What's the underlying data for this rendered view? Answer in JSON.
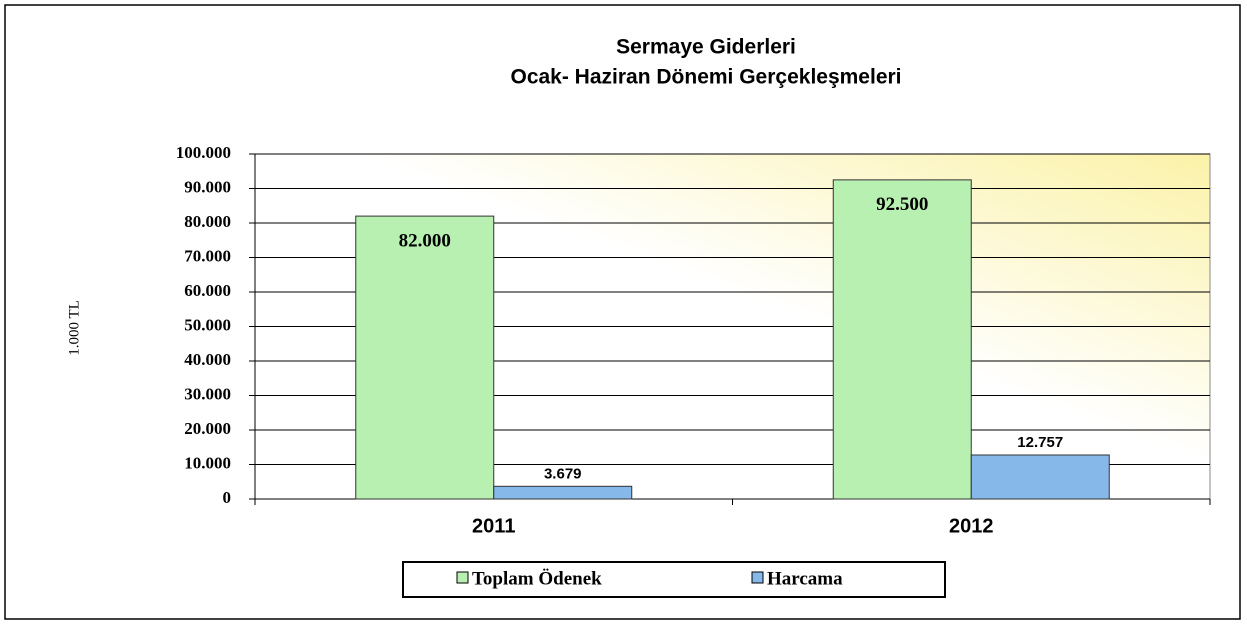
{
  "chart_data": {
    "type": "bar",
    "title": [
      "Sermaye Giderleri",
      "Ocak- Haziran Dönemi Gerçekleşmeleri"
    ],
    "y_label": "1.000 TL",
    "categories": [
      "2011",
      "2012"
    ],
    "series": [
      {
        "name": "Toplam Ödenek",
        "color": "#b8f0b2",
        "values": [
          82000,
          92500
        ],
        "value_labels": [
          "82.000",
          "92.500"
        ]
      },
      {
        "name": "Harcama",
        "color": "#86b8ea",
        "values": [
          3679,
          12757
        ],
        "value_labels": [
          "3.679",
          "12.757"
        ]
      }
    ],
    "ylim": [
      0,
      100000
    ],
    "yticks": [
      0,
      {
        "value": 10000,
        "label": "10.000"
      },
      {
        "value": 20000,
        "label": "20.000"
      },
      {
        "value": 30000,
        "label": "30.000"
      },
      {
        "value": 40000,
        "label": "40.000"
      },
      {
        "value": 50000,
        "label": "50.000"
      },
      {
        "value": 60000,
        "label": "60.000"
      },
      {
        "value": 70000,
        "label": "70.000"
      },
      {
        "value": 80000,
        "label": "80.000"
      },
      {
        "value": 90000,
        "label": "90.000"
      },
      {
        "value": 100000,
        "label": "100.000"
      }
    ],
    "grid": true,
    "legend": "bottom"
  }
}
